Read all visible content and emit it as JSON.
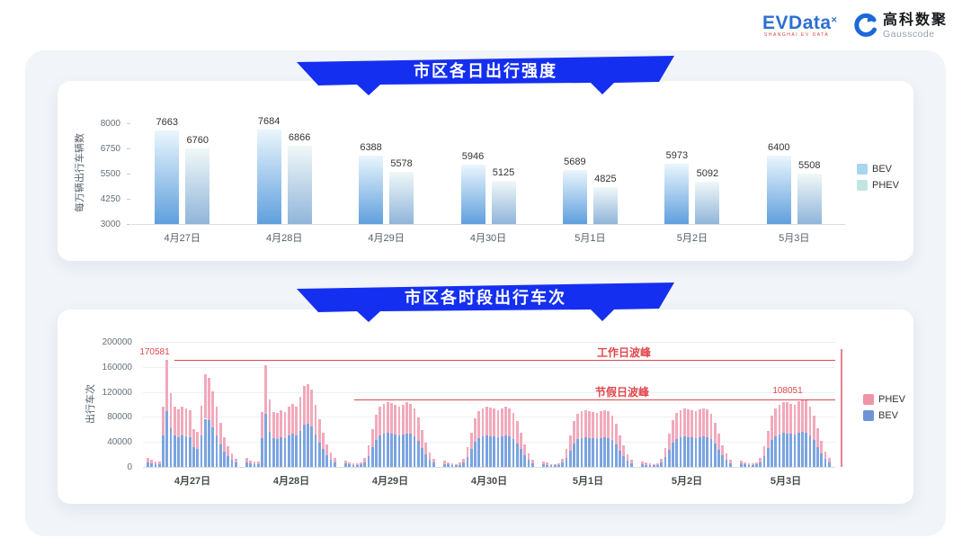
{
  "header": {
    "evdata_logo": "EVData",
    "evdata_sup": "×",
    "evdata_sub": "SHANGHAI EV DATA",
    "gausscode_cn": "高科数聚",
    "gausscode_en": "Gausscode"
  },
  "colors": {
    "banner_blue": "#152ff0",
    "annotation_red": "#e0474d",
    "pointer_red": "#e8818c",
    "daily_gradients": {
      "BEV": [
        "#eaf6fd",
        "#5f9fdd"
      ],
      "PHEV": [
        "#f0f8f8",
        "#90b5da"
      ]
    },
    "daily_legend": {
      "BEV": "#a8d5ef",
      "PHEV": "#c3e5e2"
    },
    "hourly_bev": "#7ba4e0",
    "hourly_phev": "#f2a9bb",
    "hourly_legend": {
      "PHEV": "#ef93a9",
      "BEV": "#7093d8"
    }
  },
  "chart_data": [
    {
      "type": "bar",
      "title": "市区各日出行强度",
      "ylabel": "每万辆出行车辆数",
      "ylim": [
        3000,
        8000
      ],
      "yticks": [
        3000,
        4250,
        5500,
        6750,
        8000
      ],
      "grid": false,
      "legend": [
        "BEV",
        "PHEV"
      ],
      "legend_position": "right",
      "categories": [
        "4月27日",
        "4月28日",
        "4月29日",
        "4月30日",
        "5月1日",
        "5月2日",
        "5月3日"
      ],
      "series": [
        {
          "name": "BEV",
          "values": [
            7663,
            7684,
            6388,
            5946,
            5689,
            5973,
            6400
          ]
        },
        {
          "name": "PHEV",
          "values": [
            6760,
            6866,
            5578,
            5125,
            4825,
            5092,
            5508
          ]
        }
      ]
    },
    {
      "type": "bar",
      "title": "市区各时段出行车次",
      "ylabel": "出行车次",
      "ylim": [
        0,
        200000
      ],
      "yticks": [
        0,
        40000,
        80000,
        120000,
        160000,
        200000
      ],
      "grid": true,
      "legend": [
        "PHEV",
        "BEV"
      ],
      "legend_position": "right",
      "stacked": true,
      "bev_share": 0.52,
      "annotations": {
        "weekday_peak": {
          "label": "工作日波峰",
          "value": 170581,
          "value_label": "170581"
        },
        "holiday_peak": {
          "label": "节假日波峰",
          "value": 108051,
          "value_label": "108051"
        }
      },
      "days": [
        {
          "date": "4月27日",
          "totals": [
            15000,
            11000,
            9000,
            8000,
            96000,
            170581,
            118000,
            96000,
            92000,
            97000,
            94000,
            90000,
            60000,
            56000,
            98000,
            148000,
            143000,
            121000,
            96000,
            70000,
            48000,
            33000,
            21000,
            13000
          ]
        },
        {
          "date": "4月28日",
          "totals": [
            14000,
            10000,
            8000,
            8000,
            88000,
            163000,
            108000,
            88000,
            86000,
            91000,
            88000,
            96000,
            101000,
            97000,
            112000,
            129000,
            133000,
            124000,
            99000,
            76000,
            54000,
            36000,
            23000,
            14000
          ]
        },
        {
          "date": "4月29日",
          "totals": [
            10000,
            7000,
            6000,
            5500,
            7000,
            15000,
            34000,
            60000,
            84000,
            96000,
            101000,
            104000,
            102000,
            99000,
            97000,
            100000,
            103000,
            101000,
            93000,
            79000,
            59000,
            39000,
            23000,
            13000
          ]
        },
        {
          "date": "4月30日",
          "totals": [
            9500,
            7000,
            5500,
            5000,
            6500,
            13500,
            31000,
            55000,
            78000,
            89000,
            94000,
            96000,
            95000,
            93000,
            91000,
            93000,
            96000,
            94000,
            87000,
            73000,
            55000,
            36000,
            21000,
            12000
          ]
        },
        {
          "date": "5月1日",
          "totals": [
            9000,
            6500,
            5000,
            4500,
            6000,
            12500,
            29000,
            51000,
            73000,
            85000,
            89000,
            90000,
            89000,
            88000,
            87000,
            89000,
            91000,
            89000,
            82000,
            69000,
            51000,
            34000,
            20000,
            11000
          ]
        },
        {
          "date": "5月2日",
          "totals": [
            9000,
            6500,
            5500,
            5000,
            6000,
            13000,
            30000,
            53000,
            75000,
            87000,
            91000,
            93000,
            92000,
            90000,
            89000,
            92000,
            94000,
            92000,
            85000,
            71000,
            53000,
            35000,
            21000,
            12000
          ]
        },
        {
          "date": "5月3日",
          "totals": [
            10000,
            7000,
            6000,
            5500,
            7000,
            14500,
            33000,
            58000,
            82000,
            94000,
            100000,
            104000,
            103000,
            101000,
            100000,
            105000,
            108051,
            106000,
            97000,
            82000,
            62000,
            42000,
            25000,
            14000
          ]
        }
      ]
    }
  ]
}
